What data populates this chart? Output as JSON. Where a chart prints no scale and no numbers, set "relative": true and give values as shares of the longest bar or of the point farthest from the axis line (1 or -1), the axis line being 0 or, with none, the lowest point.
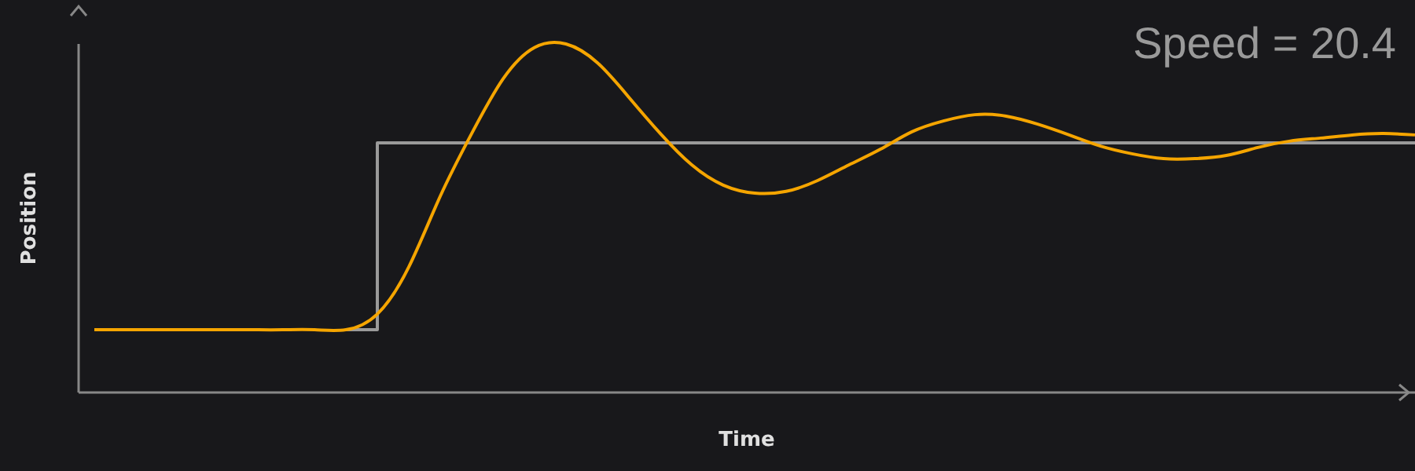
{
  "chart_data": {
    "type": "line",
    "relative": true,
    "xlabel": "Time",
    "ylabel": "Position",
    "annotations": [
      "Speed = 20.4"
    ],
    "marker": "none",
    "categories": [
      null,
      null,
      null,
      null,
      null,
      null,
      null,
      null,
      null,
      null,
      null,
      null,
      null,
      null,
      null,
      null,
      null,
      null,
      null,
      null,
      null,
      null,
      null,
      null,
      null,
      null,
      null,
      null,
      null,
      null,
      null,
      null,
      null,
      null,
      null,
      null,
      null,
      null,
      null,
      null,
      null,
      null,
      null
    ],
    "series": [
      {
        "type": "step",
        "color": "#9a9a9a",
        "values": [
          null,
          null,
          null,
          null,
          null,
          null,
          null,
          null,
          0.18,
          0.716,
          0.716,
          0.716,
          0.716,
          0.716,
          0.716,
          0.716,
          0.716,
          0.716,
          0.716,
          0.716,
          0.716,
          0.716,
          0.716,
          0.716,
          0.716,
          0.716,
          0.716,
          0.716,
          0.716,
          0.716,
          0.716,
          0.716,
          0.716,
          0.716,
          0.716,
          0.716,
          0.716,
          0.716,
          0.716,
          0.716,
          0.716,
          0.716,
          0.716
        ]
      },
      {
        "color": "#f5a500",
        "values": [
          0.18,
          0.18,
          0.18,
          0.18,
          0.18,
          0.18,
          0.18,
          0.18,
          0.18,
          0.225,
          0.36,
          0.563,
          0.743,
          0.9,
          0.99,
          1.0,
          0.946,
          0.847,
          0.743,
          0.653,
          0.595,
          0.572,
          0.577,
          0.608,
          0.653,
          0.698,
          0.748,
          0.779,
          0.797,
          0.793,
          0.77,
          0.739,
          0.707,
          0.685,
          0.671,
          0.671,
          0.68,
          0.703,
          0.721,
          0.73,
          0.739,
          0.743,
          0.739
        ]
      }
    ]
  }
}
